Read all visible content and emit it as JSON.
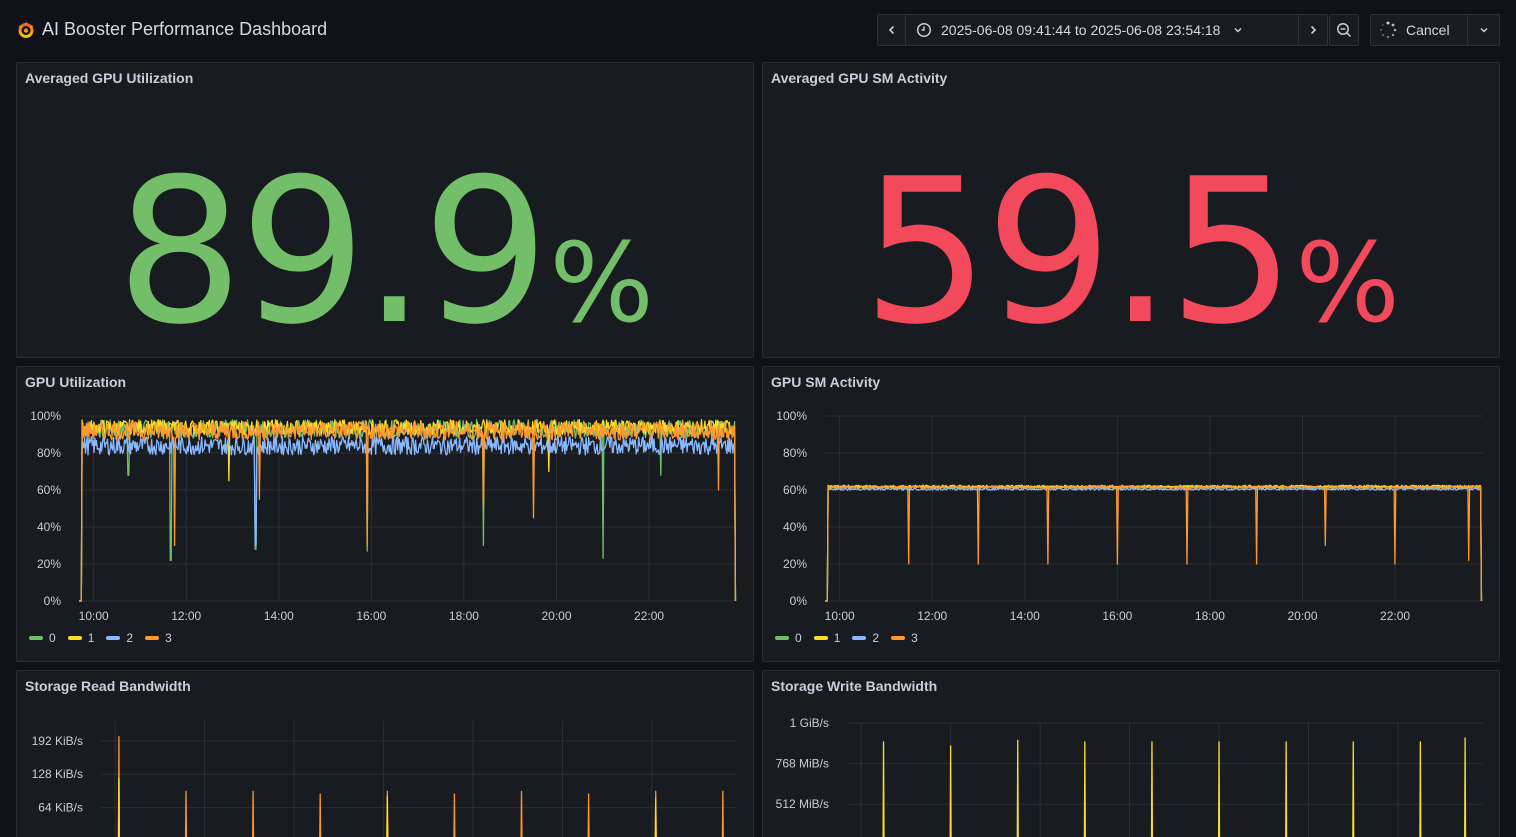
{
  "app": {
    "title": "AI Booster Performance Dashboard",
    "logo_icon": "grafana-logo-icon"
  },
  "toolbar": {
    "time_range": "2025-06-08 09:41:44 to 2025-06-08 23:54:18",
    "cancel_label": "Cancel",
    "icons": [
      "chevron-left-icon",
      "clock-icon",
      "chevron-down-icon",
      "chevron-right-icon",
      "zoom-out-icon",
      "spinner-icon",
      "chevron-down-icon"
    ]
  },
  "colors": {
    "green": "#73bf69",
    "red": "#f2495c",
    "yellow": "#fade2a",
    "blue": "#8ab8ff",
    "orange": "#ff9830",
    "grid": "#2c2e35",
    "text": "#ccccdc"
  },
  "panels": {
    "avg_gpu_util": {
      "title": "Averaged GPU Utilization",
      "value": "89.9",
      "unit": "%",
      "color": "#73bf69"
    },
    "avg_gpu_sm": {
      "title": "Averaged GPU SM Activity",
      "value": "59.5",
      "unit": "%",
      "color": "#f2495c"
    },
    "gpu_util": {
      "title": "GPU Utilization"
    },
    "gpu_sm": {
      "title": "GPU SM Activity"
    },
    "storage_read": {
      "title": "Storage Read Bandwidth"
    },
    "storage_write": {
      "title": "Storage Write Bandwidth"
    }
  },
  "legend": [
    {
      "name": "0",
      "color": "#73bf69"
    },
    {
      "name": "1",
      "color": "#fade2a"
    },
    {
      "name": "2",
      "color": "#8ab8ff"
    },
    {
      "name": "3",
      "color": "#ff9830"
    }
  ],
  "chart_data": [
    {
      "id": "gpu_util",
      "type": "line",
      "title": "GPU Utilization",
      "x_ticks": [
        "10:00",
        "12:00",
        "14:00",
        "16:00",
        "18:00",
        "20:00",
        "22:00"
      ],
      "y_ticks": [
        "0%",
        "20%",
        "40%",
        "60%",
        "80%",
        "100%"
      ],
      "ylim": [
        0,
        100
      ],
      "xlim": [
        "09:41",
        "23:54"
      ],
      "series": [
        {
          "name": "0",
          "color": "#73bf69",
          "baseline": 93,
          "noise": 5,
          "dips": [
            [
              "11:40",
              22
            ],
            [
              "13:30",
              28
            ],
            [
              "15:55",
              27
            ],
            [
              "18:25",
              30
            ],
            [
              "21:00",
              23
            ],
            [
              "10:45",
              68
            ],
            [
              "22:15",
              68
            ]
          ]
        },
        {
          "name": "1",
          "color": "#fade2a",
          "baseline": 94,
          "noise": 4,
          "dips": [
            [
              "12:55",
              65
            ],
            [
              "19:50",
              70
            ]
          ]
        },
        {
          "name": "2",
          "color": "#8ab8ff",
          "baseline": 84,
          "noise": 5,
          "dips": [
            [
              "13:30",
              30
            ]
          ]
        },
        {
          "name": "3",
          "color": "#ff9830",
          "baseline": 92,
          "noise": 5,
          "dips": [
            [
              "11:45",
              30
            ],
            [
              "13:35",
              55
            ],
            [
              "15:55",
              30
            ],
            [
              "18:25",
              50
            ],
            [
              "19:30",
              45
            ],
            [
              "23:30",
              60
            ]
          ]
        }
      ]
    },
    {
      "id": "gpu_sm",
      "type": "line",
      "title": "GPU SM Activity",
      "x_ticks": [
        "10:00",
        "12:00",
        "14:00",
        "16:00",
        "18:00",
        "20:00",
        "22:00"
      ],
      "y_ticks": [
        "0%",
        "20%",
        "40%",
        "60%",
        "80%",
        "100%"
      ],
      "ylim": [
        0,
        100
      ],
      "xlim": [
        "09:41",
        "23:54"
      ],
      "series": [
        {
          "name": "0",
          "color": "#73bf69",
          "baseline": 61.5,
          "noise": 0.6,
          "dips": []
        },
        {
          "name": "1",
          "color": "#fade2a",
          "baseline": 62,
          "noise": 0.6,
          "dips": []
        },
        {
          "name": "2",
          "color": "#8ab8ff",
          "baseline": 60.5,
          "noise": 0.6,
          "dips": []
        },
        {
          "name": "3",
          "color": "#ff9830",
          "baseline": 61.5,
          "noise": 0.6,
          "dips": [
            [
              "11:30",
              20
            ],
            [
              "13:00",
              20
            ],
            [
              "14:30",
              20
            ],
            [
              "16:00",
              20
            ],
            [
              "17:30",
              20
            ],
            [
              "19:00",
              20
            ],
            [
              "20:30",
              30
            ],
            [
              "22:00",
              20
            ],
            [
              "23:35",
              22
            ]
          ]
        }
      ]
    },
    {
      "id": "storage_read",
      "type": "line",
      "title": "Storage Read Bandwidth",
      "y_ticks": [
        "64 KiB/s",
        "128 KiB/s",
        "192 KiB/s"
      ],
      "y_tick_values": [
        64,
        128,
        192
      ],
      "ylim": [
        0,
        230
      ],
      "xlim": [
        "09:41",
        "23:54"
      ],
      "series": [
        {
          "name": "3",
          "color": "#ff9830",
          "spikes": [
            [
              "10:05",
              200
            ],
            [
              "11:35",
              95
            ],
            [
              "13:05",
              95
            ],
            [
              "14:35",
              90
            ],
            [
              "16:05",
              95
            ],
            [
              "17:35",
              90
            ],
            [
              "19:05",
              95
            ],
            [
              "20:35",
              90
            ],
            [
              "22:05",
              95
            ],
            [
              "23:35",
              95
            ]
          ]
        },
        {
          "name": "1",
          "color": "#fade2a",
          "spikes": [
            [
              "10:05",
              120
            ],
            [
              "16:05",
              85
            ],
            [
              "22:05",
              80
            ]
          ]
        }
      ]
    },
    {
      "id": "storage_write",
      "type": "line",
      "title": "Storage Write Bandwidth",
      "y_ticks": [
        "512 MiB/s",
        "768 MiB/s",
        "1 GiB/s"
      ],
      "y_tick_values": [
        512,
        768,
        1024
      ],
      "ylim": [
        280,
        1024
      ],
      "xlim": [
        "09:41",
        "23:54"
      ],
      "series": [
        {
          "name": "1",
          "color": "#fade2a",
          "spikes": [
            [
              "10:30",
              905
            ],
            [
              "12:00",
              880
            ],
            [
              "13:30",
              915
            ],
            [
              "15:00",
              905
            ],
            [
              "16:30",
              905
            ],
            [
              "18:00",
              905
            ],
            [
              "19:30",
              905
            ],
            [
              "21:00",
              905
            ],
            [
              "22:30",
              905
            ],
            [
              "23:30",
              930
            ]
          ]
        }
      ]
    }
  ]
}
